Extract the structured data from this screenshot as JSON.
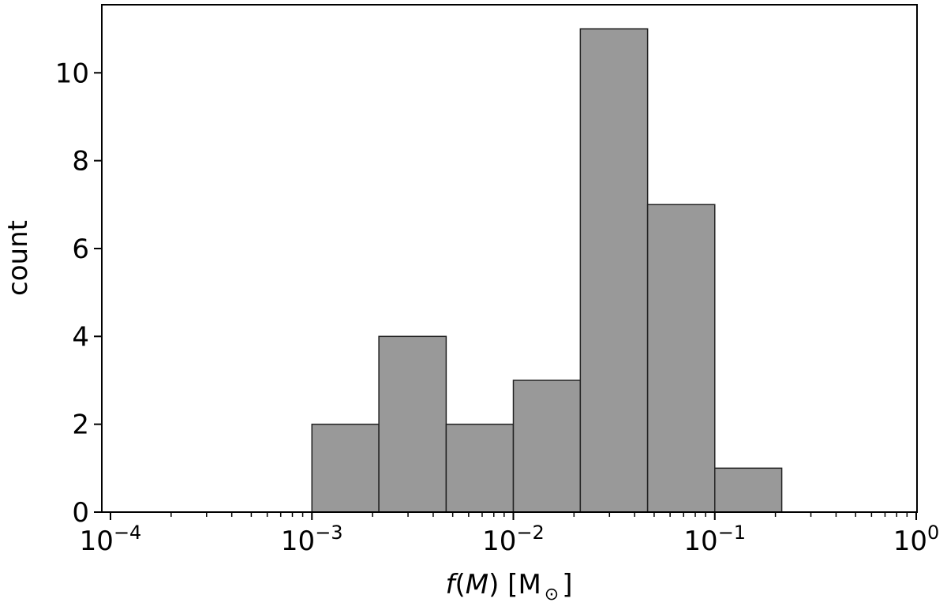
{
  "chart_data": {
    "type": "bar",
    "subtype": "histogram",
    "xscale": "log",
    "xlim": [
      0.0001,
      1
    ],
    "ylim": [
      0,
      11.55
    ],
    "xlabel": {
      "func": "f",
      "arg": "M",
      "unit_main": "M",
      "unit_sub": "⊙"
    },
    "ylabel": "count",
    "x_ticks": [
      {
        "value": 0.0001,
        "base": "10",
        "exp": "−4"
      },
      {
        "value": 0.001,
        "base": "10",
        "exp": "−3"
      },
      {
        "value": 0.01,
        "base": "10",
        "exp": "−2"
      },
      {
        "value": 0.1,
        "base": "10",
        "exp": "−1"
      },
      {
        "value": 1,
        "base": "10",
        "exp": "0"
      }
    ],
    "y_ticks": [
      0,
      2,
      4,
      6,
      8,
      10
    ],
    "bins": [
      {
        "left": 0.001,
        "right": 0.00215,
        "count": 2
      },
      {
        "left": 0.00215,
        "right": 0.00464,
        "count": 4
      },
      {
        "left": 0.00464,
        "right": 0.01,
        "count": 2
      },
      {
        "left": 0.01,
        "right": 0.0215,
        "count": 3
      },
      {
        "left": 0.0215,
        "right": 0.0464,
        "count": 11
      },
      {
        "left": 0.0464,
        "right": 0.1,
        "count": 7
      },
      {
        "left": 0.1,
        "right": 0.215,
        "count": 1
      }
    ],
    "colors": {
      "bar_fill": "#999999",
      "bar_edge": "#222222"
    },
    "grid": false
  }
}
